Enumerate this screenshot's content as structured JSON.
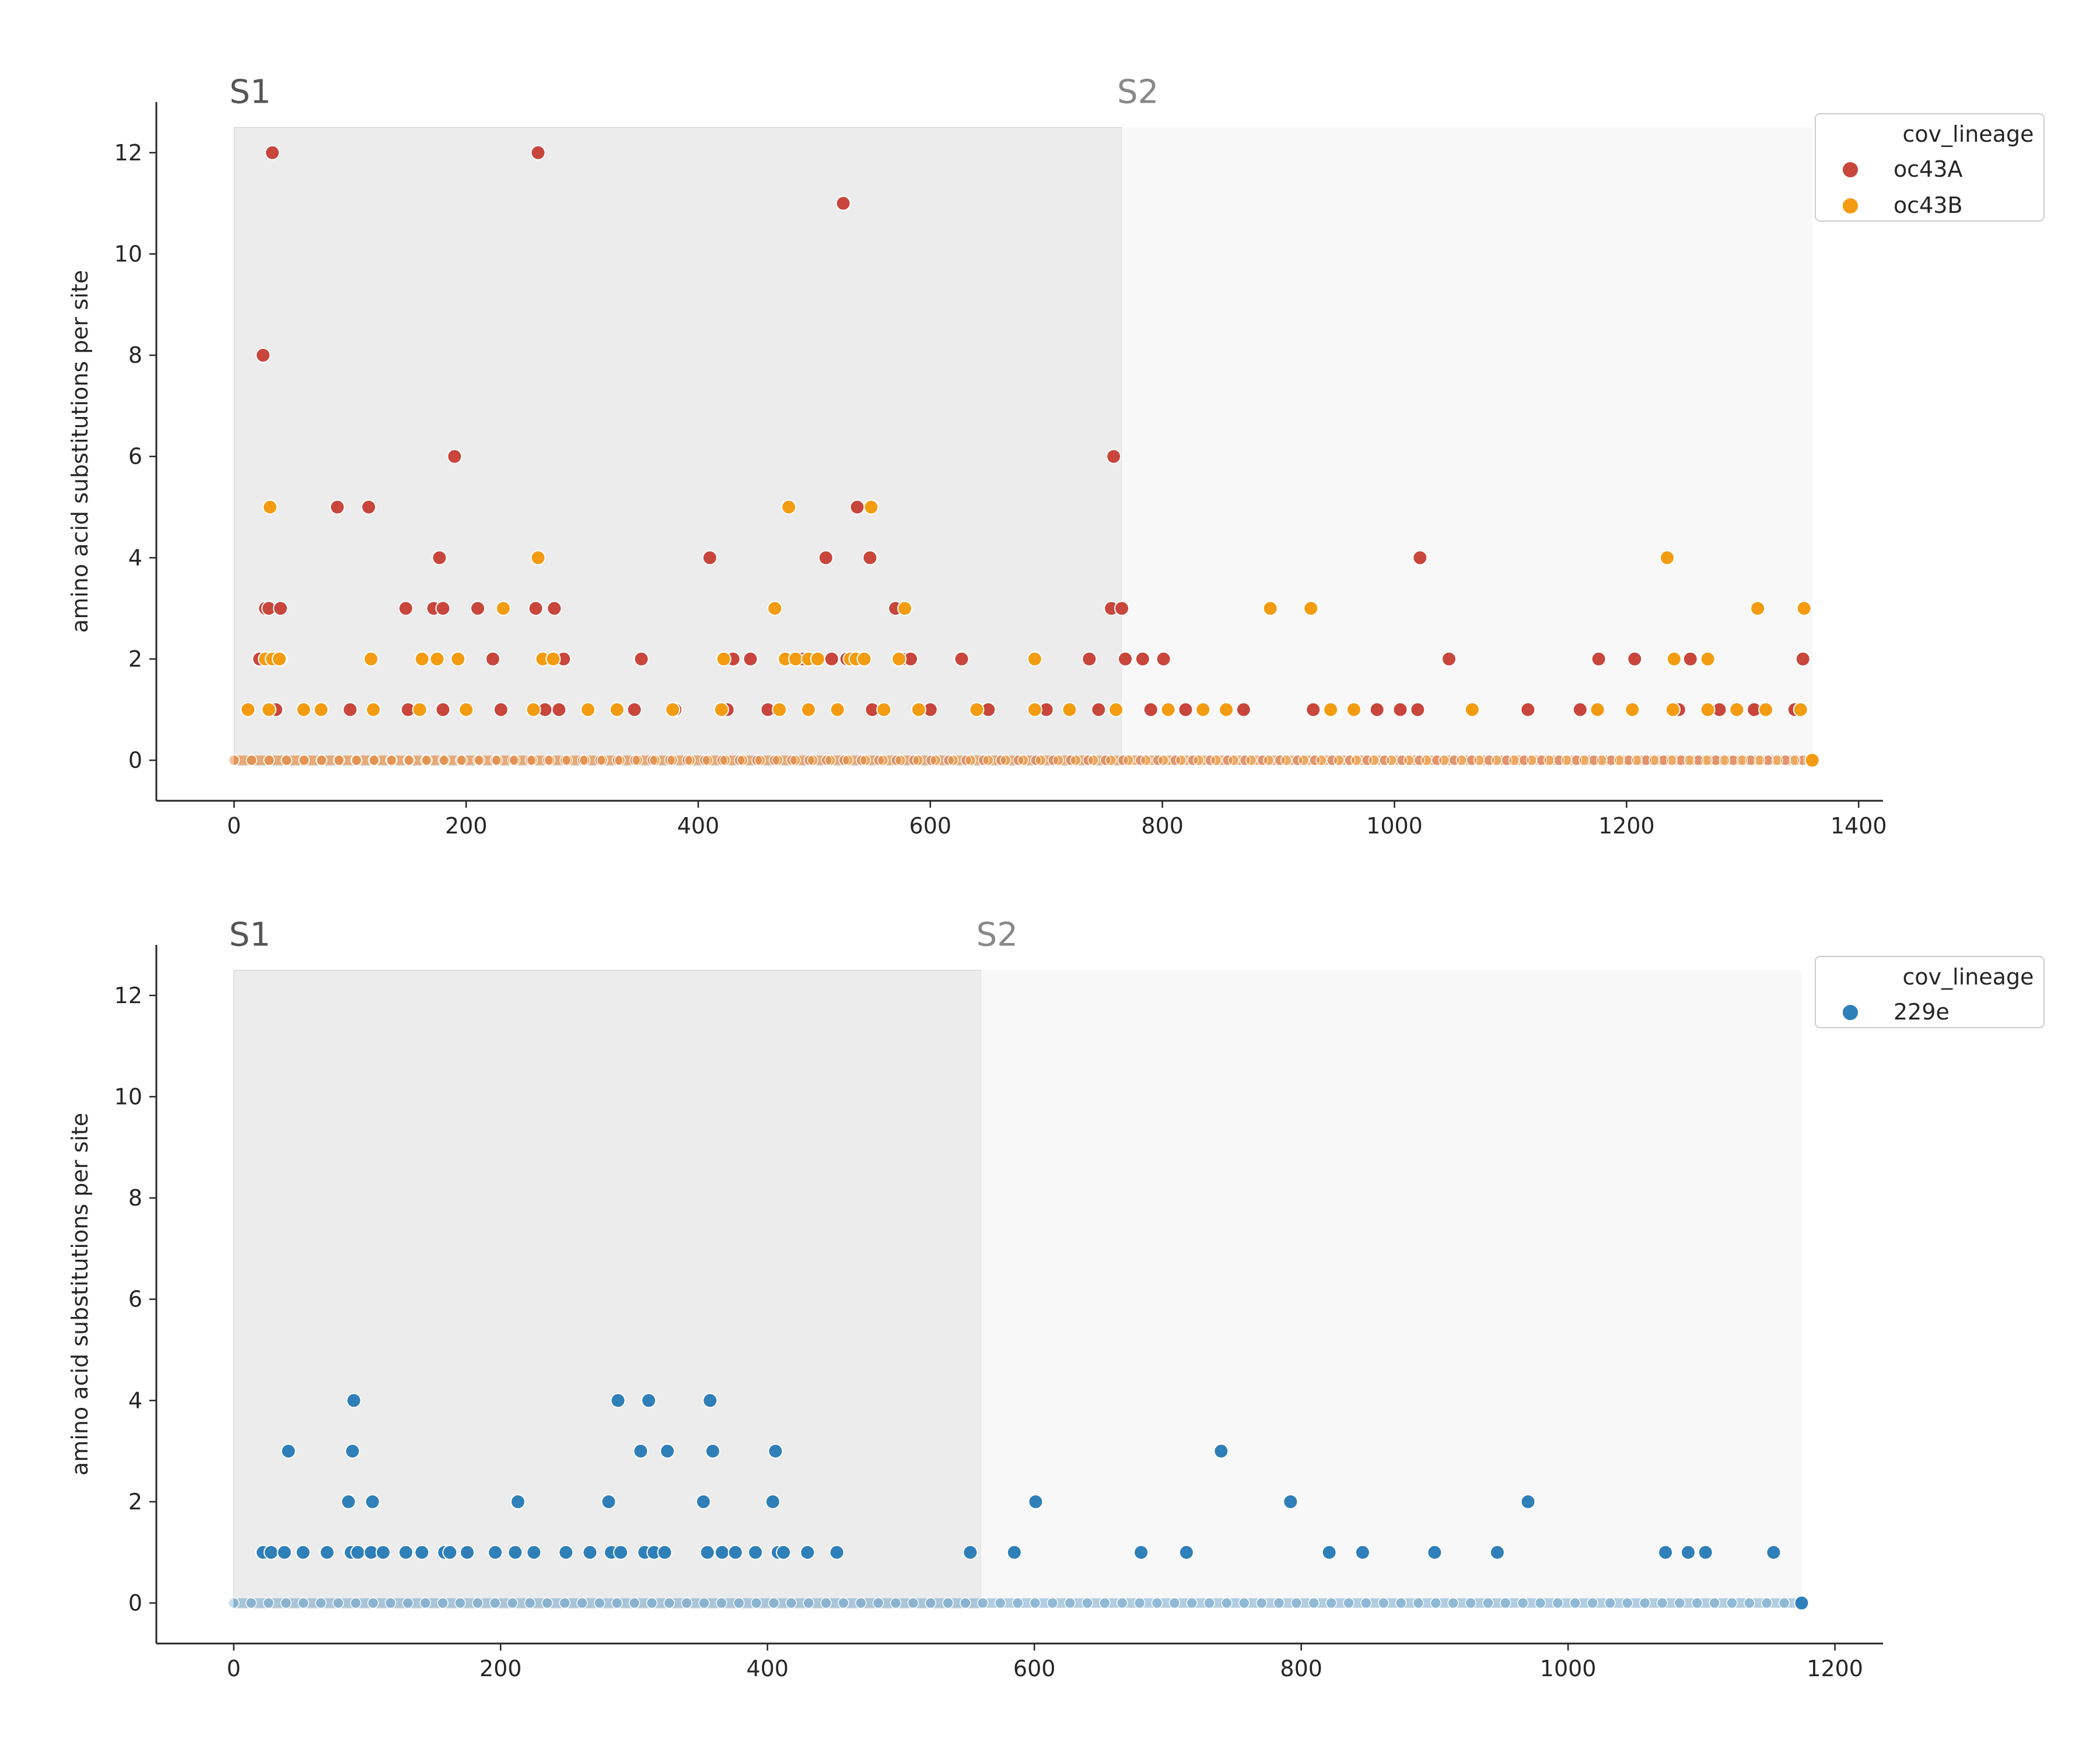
{
  "chart_data": [
    {
      "type": "scatter",
      "ylabel": "amino acid substitutions per site",
      "xlabel": "",
      "xlim": [
        -67,
        1421
      ],
      "ylim": [
        -0.8,
        13.0
      ],
      "xticks": [
        "0",
        "200",
        "400",
        "600",
        "800",
        "1000",
        "1200",
        "1400"
      ],
      "yticks": [
        "0",
        "2",
        "4",
        "6",
        "8",
        "10",
        "12"
      ],
      "regions": [
        {
          "label": "S1",
          "start": 0,
          "end": 765,
          "color": "#ececec"
        },
        {
          "label": "S2",
          "start": 765,
          "end": 1360,
          "color": "#f8f8f8"
        }
      ],
      "region_top": 12.5,
      "legend": {
        "title": "cov_lineage",
        "position": "top-right"
      },
      "series": [
        {
          "name": "oc43A",
          "color": "#c8463c",
          "points": [
            [
              22,
              2
            ],
            [
              25,
              8
            ],
            [
              27,
              3
            ],
            [
              30,
              3
            ],
            [
              33,
              12
            ],
            [
              36,
              1
            ],
            [
              40,
              3
            ],
            [
              40,
              2
            ],
            [
              89,
              5
            ],
            [
              116,
              5
            ],
            [
              148,
              3
            ],
            [
              172,
              3
            ],
            [
              177,
              4
            ],
            [
              180,
              3
            ],
            [
              190,
              6
            ],
            [
              210,
              3
            ],
            [
              223,
              2
            ],
            [
              260,
              3
            ],
            [
              262,
              12
            ],
            [
              276,
              3
            ],
            [
              280,
              1
            ],
            [
              284,
              2
            ],
            [
              351,
              2
            ],
            [
              410,
              4
            ],
            [
              430,
              2
            ],
            [
              445,
              2
            ],
            [
              490,
              2
            ],
            [
              510,
              4
            ],
            [
              515,
              2
            ],
            [
              525,
              11
            ],
            [
              528,
              2
            ],
            [
              537,
              5
            ],
            [
              548,
              4
            ],
            [
              570,
              3
            ],
            [
              576,
              2
            ],
            [
              583,
              2
            ],
            [
              627,
              2
            ],
            [
              737,
              2
            ],
            [
              756,
              3
            ],
            [
              758,
              6
            ],
            [
              765,
              3
            ],
            [
              768,
              2
            ],
            [
              783,
              2
            ],
            [
              801,
              2
            ],
            [
              1022,
              4
            ],
            [
              1047,
              2
            ],
            [
              1176,
              2
            ],
            [
              1207,
              2
            ],
            [
              1255,
              2
            ],
            [
              1352,
              2
            ],
            [
              100,
              1
            ],
            [
              150,
              1
            ],
            [
              180,
              1
            ],
            [
              230,
              1
            ],
            [
              268,
              1
            ],
            [
              345,
              1
            ],
            [
              380,
              1
            ],
            [
              425,
              1
            ],
            [
              460,
              1
            ],
            [
              520,
              1
            ],
            [
              550,
              1
            ],
            [
              600,
              1
            ],
            [
              650,
              1
            ],
            [
              700,
              1
            ],
            [
              745,
              1
            ],
            [
              790,
              1
            ],
            [
              820,
              1
            ],
            [
              870,
              1
            ],
            [
              930,
              1
            ],
            [
              985,
              1
            ],
            [
              1005,
              1
            ],
            [
              1020,
              1
            ],
            [
              1115,
              1
            ],
            [
              1160,
              1
            ],
            [
              1245,
              1
            ],
            [
              1280,
              1
            ],
            [
              1310,
              1
            ],
            [
              1345,
              1
            ]
          ]
        },
        {
          "name": "oc43B",
          "color": "#f39c12",
          "points": [
            [
              31,
              5
            ],
            [
              27,
              2
            ],
            [
              33,
              2
            ],
            [
              39,
              2
            ],
            [
              118,
              2
            ],
            [
              162,
              2
            ],
            [
              175,
              2
            ],
            [
              193,
              2
            ],
            [
              232,
              3
            ],
            [
              262,
              4
            ],
            [
              266,
              2
            ],
            [
              275,
              2
            ],
            [
              422,
              2
            ],
            [
              466,
              3
            ],
            [
              478,
              5
            ],
            [
              475,
              2
            ],
            [
              484,
              2
            ],
            [
              495,
              2
            ],
            [
              503,
              2
            ],
            [
              531,
              2
            ],
            [
              536,
              2
            ],
            [
              543,
              2
            ],
            [
              549,
              5
            ],
            [
              573,
              2
            ],
            [
              578,
              3
            ],
            [
              690,
              2
            ],
            [
              893,
              3
            ],
            [
              928,
              3
            ],
            [
              1235,
              4
            ],
            [
              1241,
              2
            ],
            [
              1270,
              2
            ],
            [
              1313,
              3
            ],
            [
              1353,
              3
            ],
            [
              12,
              1
            ],
            [
              30,
              1
            ],
            [
              60,
              1
            ],
            [
              75,
              1
            ],
            [
              120,
              1
            ],
            [
              160,
              1
            ],
            [
              200,
              1
            ],
            [
              258,
              1
            ],
            [
              305,
              1
            ],
            [
              330,
              1
            ],
            [
              378,
              1
            ],
            [
              420,
              1
            ],
            [
              470,
              1
            ],
            [
              495,
              1
            ],
            [
              520,
              1
            ],
            [
              560,
              1
            ],
            [
              590,
              1
            ],
            [
              640,
              1
            ],
            [
              690,
              1
            ],
            [
              720,
              1
            ],
            [
              760,
              1
            ],
            [
              805,
              1
            ],
            [
              835,
              1
            ],
            [
              855,
              1
            ],
            [
              945,
              1
            ],
            [
              965,
              1
            ],
            [
              1067,
              1
            ],
            [
              1175,
              1
            ],
            [
              1205,
              1
            ],
            [
              1240,
              1
            ],
            [
              1270,
              1
            ],
            [
              1295,
              1
            ],
            [
              1320,
              1
            ],
            [
              1350,
              1
            ],
            [
              1360,
              0
            ]
          ]
        }
      ]
    },
    {
      "type": "scatter",
      "ylabel": "amino acid substitutions per site",
      "xlabel": "",
      "xlim": [
        -58,
        1236
      ],
      "ylim": [
        -0.8,
        13.0
      ],
      "xticks": [
        "0",
        "200",
        "400",
        "600",
        "800",
        "1000",
        "1200"
      ],
      "yticks": [
        "0",
        "2",
        "4",
        "6",
        "8",
        "10",
        "12"
      ],
      "regions": [
        {
          "label": "S1",
          "start": 0,
          "end": 560,
          "color": "#ececec"
        },
        {
          "label": "S2",
          "start": 560,
          "end": 1175,
          "color": "#f8f8f8"
        }
      ],
      "region_top": 12.5,
      "legend": {
        "title": "cov_lineage",
        "position": "top-right"
      },
      "series": [
        {
          "name": "229e",
          "color": "#2f7fb8",
          "points": [
            [
              22,
              1
            ],
            [
              28,
              1
            ],
            [
              38,
              1
            ],
            [
              41,
              3
            ],
            [
              52,
              1
            ],
            [
              70,
              1
            ],
            [
              86,
              2
            ],
            [
              88,
              1
            ],
            [
              89,
              3
            ],
            [
              90,
              4
            ],
            [
              93,
              1
            ],
            [
              103,
              1
            ],
            [
              104,
              2
            ],
            [
              112,
              1
            ],
            [
              129,
              1
            ],
            [
              141,
              1
            ],
            [
              158,
              1
            ],
            [
              162,
              1
            ],
            [
              175,
              1
            ],
            [
              196,
              1
            ],
            [
              211,
              1
            ],
            [
              213,
              2
            ],
            [
              225,
              1
            ],
            [
              249,
              1
            ],
            [
              267,
              1
            ],
            [
              281,
              2
            ],
            [
              283,
              1
            ],
            [
              288,
              4
            ],
            [
              290,
              1
            ],
            [
              305,
              3
            ],
            [
              308,
              1
            ],
            [
              311,
              4
            ],
            [
              315,
              1
            ],
            [
              323,
              1
            ],
            [
              325,
              3
            ],
            [
              352,
              2
            ],
            [
              355,
              1
            ],
            [
              357,
              4
            ],
            [
              359,
              3
            ],
            [
              366,
              1
            ],
            [
              376,
              1
            ],
            [
              391,
              1
            ],
            [
              404,
              2
            ],
            [
              406,
              3
            ],
            [
              408,
              1
            ],
            [
              412,
              1
            ],
            [
              430,
              1
            ],
            [
              452,
              1
            ],
            [
              552,
              1
            ],
            [
              585,
              1
            ],
            [
              601,
              2
            ],
            [
              680,
              1
            ],
            [
              714,
              1
            ],
            [
              740,
              3
            ],
            [
              792,
              2
            ],
            [
              821,
              1
            ],
            [
              846,
              1
            ],
            [
              900,
              1
            ],
            [
              947,
              1
            ],
            [
              970,
              2
            ],
            [
              1073,
              1
            ],
            [
              1090,
              1
            ],
            [
              1103,
              1
            ],
            [
              1154,
              1
            ],
            [
              1175,
              0
            ]
          ]
        }
      ]
    }
  ]
}
